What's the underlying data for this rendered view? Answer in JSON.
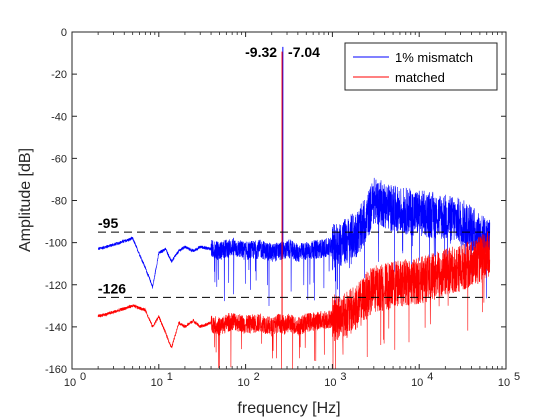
{
  "chart_data": {
    "type": "line",
    "xscale": "log",
    "xlim": [
      1,
      100000
    ],
    "ylim": [
      -160,
      0
    ],
    "xlabel": "frequency [Hz]",
    "ylabel": "Amplitude [dB]",
    "grid": false,
    "legend_position": "top-right",
    "x_tick_labels": [
      {
        "base": "10",
        "exp": "0"
      },
      {
        "base": "10",
        "exp": "1"
      },
      {
        "base": "10",
        "exp": "2"
      },
      {
        "base": "10",
        "exp": "3"
      },
      {
        "base": "10",
        "exp": "4"
      },
      {
        "base": "10",
        "exp": "5"
      }
    ],
    "y_ticks": [
      "0",
      "-20",
      "-40",
      "-60",
      "-80",
      "-100",
      "-120",
      "-140",
      "-160"
    ],
    "series": [
      {
        "name": "1% mismatch",
        "color": "#0000ff",
        "x": [
          2,
          3,
          5,
          7,
          8.5,
          10,
          12,
          14,
          17,
          20,
          25,
          30,
          40,
          50,
          70,
          100,
          150,
          200,
          240,
          263,
          280,
          320,
          400,
          500,
          700,
          1000,
          1500,
          2000,
          2500,
          3000,
          4000,
          5000,
          7000,
          10000,
          15000,
          20000,
          30000,
          40000,
          50000,
          60000,
          65000
        ],
        "y": [
          -103,
          -101,
          -98,
          -112,
          -121,
          -105,
          -103,
          -109,
          -104,
          -102,
          -104,
          -102,
          -103,
          -104,
          -102,
          -104,
          -103,
          -105,
          -104,
          -7.04,
          -104,
          -103,
          -105,
          -104,
          -103,
          -102,
          -99,
          -95,
          -88,
          -80,
          -82,
          -84,
          -85,
          -86,
          -87,
          -88,
          -90,
          -93,
          -97,
          -99,
          -100
        ]
      },
      {
        "name": "matched",
        "color": "#ff0000",
        "x": [
          2,
          3,
          5,
          7,
          8.5,
          10,
          12,
          14,
          17,
          20,
          25,
          30,
          40,
          50,
          70,
          100,
          150,
          200,
          240,
          263,
          280,
          320,
          400,
          500,
          700,
          1000,
          1500,
          2000,
          2500,
          3000,
          4000,
          5000,
          7000,
          10000,
          15000,
          20000,
          30000,
          40000,
          50000,
          60000,
          65000
        ],
        "y": [
          -135,
          -133,
          -130,
          -132,
          -140,
          -135,
          -143,
          -150,
          -138,
          -140,
          -137,
          -140,
          -138,
          -140,
          -137,
          -139,
          -138,
          -140,
          -138,
          -9.32,
          -139,
          -138,
          -140,
          -138,
          -137,
          -136,
          -134,
          -130,
          -125,
          -122,
          -121,
          -120,
          -119,
          -118,
          -116,
          -114,
          -112,
          -110,
          -108,
          -106,
          -105
        ]
      }
    ],
    "reference_lines": [
      {
        "y": -95,
        "label": "-95"
      },
      {
        "y": -126,
        "label": "-126"
      }
    ],
    "peak_labels": [
      {
        "x": 263,
        "text": "-9.32",
        "anchor": "end"
      },
      {
        "x": 263,
        "text": "-7.04",
        "anchor": "start"
      }
    ]
  }
}
